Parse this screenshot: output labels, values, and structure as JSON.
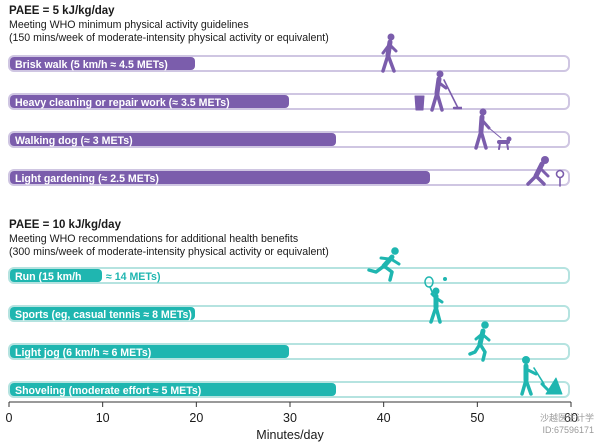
{
  "colors": {
    "purple": "#7b5dac",
    "purple_track": "#cfc6e2",
    "teal": "#1fb6b0",
    "teal_track": "#b5e3e0"
  },
  "chart_data": {
    "type": "bar",
    "orientation": "horizontal",
    "xlabel": "Minutes/day",
    "xlim": [
      0,
      60
    ],
    "xticks": [
      "0",
      "10",
      "20",
      "30",
      "40",
      "50",
      "60"
    ],
    "grid": false,
    "groups": [
      {
        "title": "PAEE = 5 kJ/kg/day",
        "subtitle_lines": [
          "Meeting WHO minimum physical activity guidelines",
          "(150 mins/week of moderate-intensity physical activity or equivalent)"
        ],
        "color_key": "purple",
        "bars": [
          {
            "label": "Brisk walk (5 km/h ≈ 4.5 METs)",
            "value": 20,
            "icon": "walking-person-icon"
          },
          {
            "label": "Heavy cleaning or repair work (≈ 3.5 METs)",
            "value": 30,
            "icon": "sweeping-person-icon"
          },
          {
            "label": "Walking dog (≈ 3 METs)",
            "value": 35,
            "icon": "dog-walker-icon"
          },
          {
            "label": "Light gardening (≈ 2.5 METs)",
            "value": 45,
            "icon": "gardening-person-icon"
          }
        ]
      },
      {
        "title": "PAEE = 10 kJ/kg/day",
        "subtitle_lines": [
          "Meeting WHO recommendations for additional health benefits",
          "(300 mins/week of moderate-intensity physical activity or equivalent)"
        ],
        "color_key": "teal",
        "bars": [
          {
            "label": "Run (15 km/h",
            "label_rest": "≈ 14 METs)",
            "value": 10,
            "icon": "runner-icon"
          },
          {
            "label": "Sports (eg, casual tennis ≈ 8 METs)",
            "value": 20,
            "icon": "tennis-player-icon"
          },
          {
            "label": "Light jog (6 km/h ≈ 6 METs)",
            "value": 30,
            "icon": "jogger-icon"
          },
          {
            "label": "Shoveling (moderate effort ≈ 5 METs)",
            "value": 35,
            "icon": "shoveling-person-icon"
          }
        ]
      }
    ]
  },
  "watermark": {
    "line1": "沙越医生计学",
    "line2": "ID:67596171"
  }
}
